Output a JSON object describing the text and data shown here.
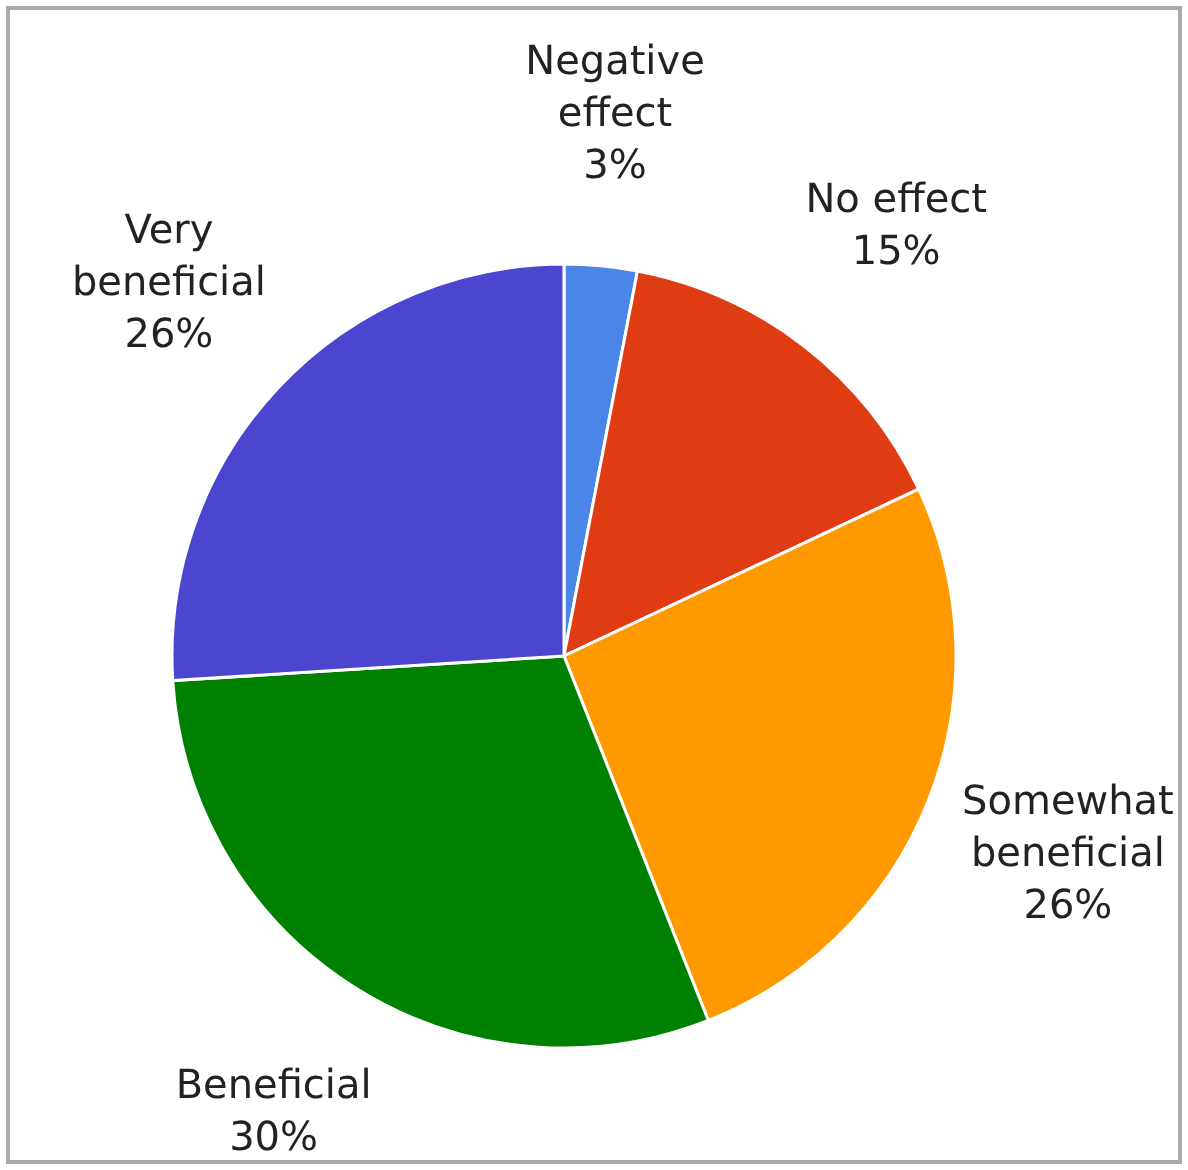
{
  "chart_data": {
    "type": "pie",
    "categories": [
      "Negative effect",
      "No effect",
      "Somewhat beneficial",
      "Beneficial",
      "Very beneficial"
    ],
    "values": [
      3,
      15,
      26,
      30,
      26
    ],
    "value_labels": [
      "3%",
      "15%",
      "26%",
      "30%",
      "26%"
    ],
    "colors": [
      "#4a86e8",
      "#e03c14",
      "#ff9900",
      "#008000",
      "#4b45cf"
    ]
  }
}
